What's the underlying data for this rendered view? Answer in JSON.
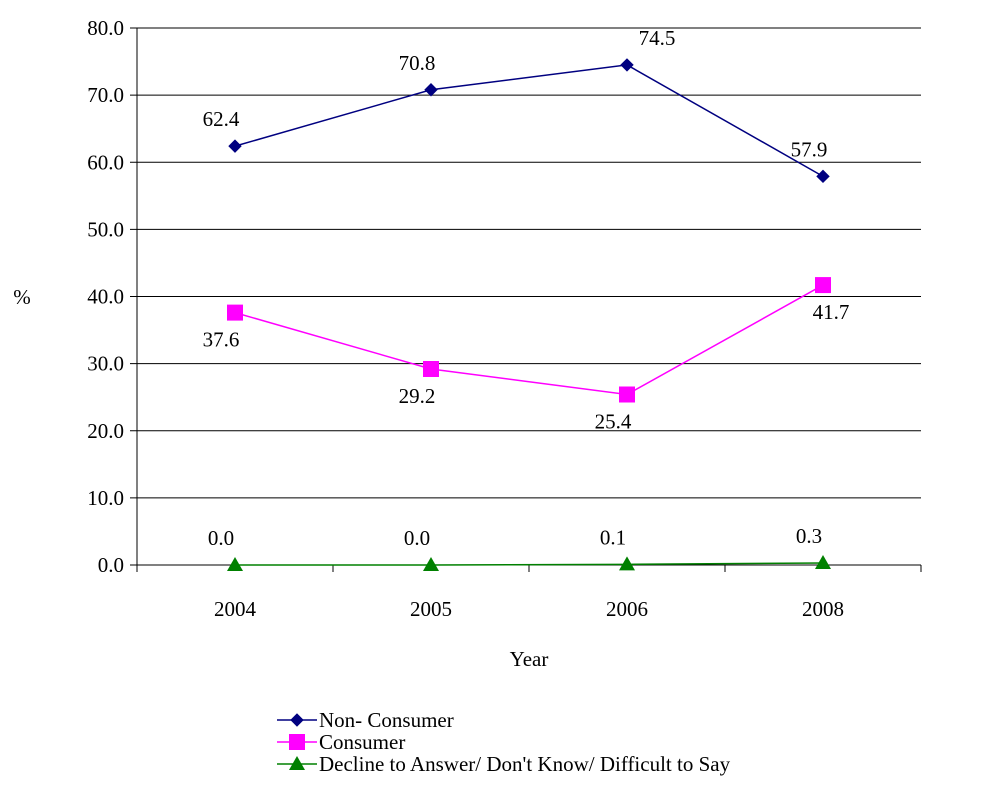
{
  "chart_data": {
    "type": "line",
    "categories": [
      "2004",
      "2005",
      "2006",
      "2008"
    ],
    "xlabel": "Year",
    "ylabel": "%",
    "ylim": [
      0,
      80
    ],
    "yticks": [
      "0.0",
      "10.0",
      "20.0",
      "30.0",
      "40.0",
      "50.0",
      "60.0",
      "70.0",
      "80.0"
    ],
    "grid": "horizontal",
    "legend_position": "bottom",
    "series": [
      {
        "name": "Non- Consumer",
        "values": [
          62.4,
          70.8,
          74.5,
          57.9
        ],
        "labels": [
          "62.4",
          "70.8",
          "74.5",
          "57.9"
        ],
        "color": "#000080",
        "marker": "diamond",
        "label_position": "above"
      },
      {
        "name": "Consumer",
        "values": [
          37.6,
          29.2,
          25.4,
          41.7
        ],
        "labels": [
          "37.6",
          "29.2",
          "25.4",
          "41.7"
        ],
        "color": "#FF00FF",
        "marker": "square",
        "label_position": "below"
      },
      {
        "name": "Decline to Answer/ Don't Know/ Difficult to Say",
        "values": [
          0.0,
          0.0,
          0.1,
          0.3
        ],
        "labels": [
          "0.0",
          "0.0",
          "0.1",
          "0.3"
        ],
        "color": "#008000",
        "marker": "triangle",
        "label_position": "above"
      }
    ]
  }
}
